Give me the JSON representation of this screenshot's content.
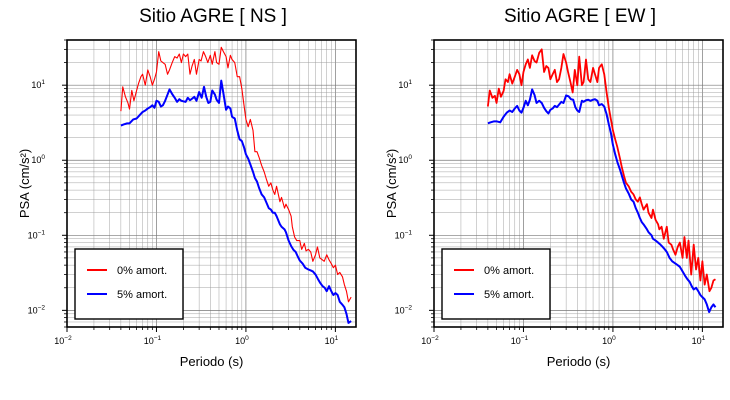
{
  "chart_data": [
    {
      "type": "line",
      "title": "Sitio AGRE [ NS ]",
      "xlabel": "Periodo (s)",
      "ylabel": "PSA (cm/s²)",
      "xscale": "log",
      "yscale": "log",
      "xlim": [
        0.01,
        17
      ],
      "ylim": [
        0.006,
        40
      ],
      "x_ticks": [
        "10⁻²",
        "10⁻¹",
        "10⁰",
        "10¹"
      ],
      "y_ticks": [
        "10⁻²",
        "10⁻¹",
        "10⁰",
        "10¹"
      ],
      "grid": true,
      "legend_position": "bottom-left",
      "series": [
        {
          "name": "0% amort.",
          "color": "#ff0000",
          "x": [
            0.04,
            0.042,
            0.045,
            0.048,
            0.05,
            0.053,
            0.056,
            0.06,
            0.063,
            0.067,
            0.07,
            0.075,
            0.08,
            0.085,
            0.09,
            0.095,
            0.1,
            0.106,
            0.112,
            0.118,
            0.125,
            0.133,
            0.14,
            0.15,
            0.16,
            0.17,
            0.18,
            0.19,
            0.2,
            0.212,
            0.224,
            0.237,
            0.25,
            0.265,
            0.28,
            0.3,
            0.315,
            0.335,
            0.355,
            0.375,
            0.4,
            0.42,
            0.45,
            0.47,
            0.5,
            0.53,
            0.56,
            0.6,
            0.63,
            0.67,
            0.7,
            0.75,
            0.8,
            0.85,
            0.9,
            0.95,
            1.0,
            1.06,
            1.12,
            1.2,
            1.26,
            1.33,
            1.4,
            1.5,
            1.6,
            1.7,
            1.8,
            1.9,
            2.0,
            2.1,
            2.2,
            2.4,
            2.5,
            2.7,
            2.8,
            3.0,
            3.2,
            3.3,
            3.5,
            3.7,
            4.0,
            4.2,
            4.5,
            4.7,
            5.0,
            5.3,
            5.6,
            6.0,
            6.3,
            6.7,
            7.0,
            7.5,
            8.0,
            8.5,
            9.0,
            9.5,
            10.0,
            10.6,
            11.2,
            12.0,
            12.6,
            13.3,
            14.0,
            15.0
          ],
          "y": [
            4.5,
            9.5,
            7,
            5.8,
            4.8,
            8.5,
            6.2,
            8.5,
            10.5,
            13,
            14,
            10,
            16,
            13,
            10,
            12,
            15,
            28,
            21,
            20,
            19,
            14,
            16,
            20,
            24,
            23,
            26,
            20,
            26,
            24,
            26,
            14,
            18,
            22,
            14,
            22,
            21,
            28,
            24,
            20,
            25,
            19,
            28,
            20,
            19,
            32,
            28,
            24,
            17,
            25,
            22,
            20,
            13,
            13,
            9,
            5.5,
            3.5,
            2.8,
            3.5,
            2.5,
            1.3,
            1.3,
            1.1,
            0.85,
            0.7,
            0.55,
            0.45,
            0.5,
            0.4,
            0.35,
            0.45,
            0.28,
            0.32,
            0.23,
            0.26,
            0.22,
            0.18,
            0.13,
            0.095,
            0.085,
            0.085,
            0.065,
            0.078,
            0.062,
            0.065,
            0.06,
            0.045,
            0.055,
            0.07,
            0.05,
            0.048,
            0.045,
            0.055,
            0.047,
            0.042,
            0.037,
            0.04,
            0.03,
            0.032,
            0.028,
            0.022,
            0.018,
            0.013,
            0.015
          ]
        },
        {
          "name": "5% amort.",
          "color": "#0000ff",
          "x": [
            0.04,
            0.043,
            0.047,
            0.05,
            0.055,
            0.06,
            0.065,
            0.07,
            0.075,
            0.08,
            0.085,
            0.09,
            0.095,
            0.1,
            0.106,
            0.112,
            0.118,
            0.125,
            0.133,
            0.14,
            0.15,
            0.16,
            0.17,
            0.18,
            0.19,
            0.2,
            0.212,
            0.224,
            0.237,
            0.25,
            0.265,
            0.28,
            0.3,
            0.32,
            0.34,
            0.36,
            0.38,
            0.4,
            0.42,
            0.45,
            0.47,
            0.5,
            0.53,
            0.56,
            0.6,
            0.63,
            0.67,
            0.7,
            0.75,
            0.8,
            0.85,
            0.9,
            0.95,
            1.0,
            1.06,
            1.12,
            1.2,
            1.26,
            1.33,
            1.4,
            1.5,
            1.6,
            1.7,
            1.8,
            1.9,
            2.0,
            2.1,
            2.2,
            2.4,
            2.5,
            2.7,
            2.8,
            3.0,
            3.2,
            3.4,
            3.6,
            3.8,
            4.0,
            4.3,
            4.6,
            5.0,
            5.3,
            5.6,
            6.0,
            6.4,
            6.8,
            7.2,
            7.6,
            8.0,
            8.5,
            9.0,
            9.5,
            10.0,
            10.6,
            11.2,
            11.9,
            12.6,
            13.3,
            14.0,
            15.0
          ],
          "y": [
            2.9,
            3.0,
            3.1,
            3.1,
            3.5,
            3.6,
            4.0,
            4.4,
            4.6,
            4.9,
            5.1,
            5.4,
            5.0,
            6.2,
            6.0,
            5.2,
            5.4,
            6.2,
            7.5,
            8.8,
            7.6,
            6.8,
            6.0,
            6.5,
            6.2,
            6.1,
            6.0,
            6.8,
            6.3,
            6.6,
            7.0,
            6.2,
            8.1,
            6.8,
            9.5,
            7.0,
            5.8,
            6.0,
            8.5,
            7.5,
            6.4,
            5.8,
            11.5,
            7.8,
            4.7,
            5.2,
            4.9,
            3.8,
            3.6,
            2.5,
            1.9,
            1.8,
            1.5,
            1.2,
            1.05,
            0.88,
            0.7,
            0.58,
            0.52,
            0.43,
            0.35,
            0.32,
            0.27,
            0.23,
            0.22,
            0.2,
            0.2,
            0.18,
            0.14,
            0.13,
            0.12,
            0.11,
            0.085,
            0.072,
            0.064,
            0.06,
            0.052,
            0.046,
            0.042,
            0.037,
            0.035,
            0.034,
            0.033,
            0.03,
            0.026,
            0.023,
            0.021,
            0.02,
            0.018,
            0.021,
            0.018,
            0.016,
            0.017,
            0.016,
            0.013,
            0.012,
            0.011,
            0.009,
            0.0068,
            0.0072
          ]
        }
      ]
    },
    {
      "type": "line",
      "title": "Sitio AGRE [ EW ]",
      "xlabel": "Periodo (s)",
      "ylabel": "PSA (cm/s²)",
      "xscale": "log",
      "yscale": "log",
      "xlim": [
        0.01,
        17
      ],
      "ylim": [
        0.006,
        40
      ],
      "x_ticks": [
        "10⁻²",
        "10⁻¹",
        "10⁰",
        "10¹"
      ],
      "y_ticks": [
        "10⁻²",
        "10⁻¹",
        "10⁰",
        "10¹"
      ],
      "grid": true,
      "legend_position": "bottom-left",
      "series": [
        {
          "name": "0% amort.",
          "color": "#ff0000",
          "x": [
            0.04,
            0.042,
            0.045,
            0.048,
            0.05,
            0.053,
            0.056,
            0.06,
            0.063,
            0.067,
            0.07,
            0.075,
            0.08,
            0.085,
            0.09,
            0.095,
            0.1,
            0.106,
            0.112,
            0.118,
            0.125,
            0.133,
            0.14,
            0.15,
            0.16,
            0.17,
            0.18,
            0.19,
            0.2,
            0.212,
            0.224,
            0.237,
            0.25,
            0.265,
            0.28,
            0.3,
            0.315,
            0.335,
            0.355,
            0.375,
            0.4,
            0.42,
            0.45,
            0.47,
            0.5,
            0.53,
            0.56,
            0.6,
            0.63,
            0.67,
            0.7,
            0.75,
            0.8,
            0.85,
            0.9,
            0.95,
            1.0,
            1.06,
            1.12,
            1.2,
            1.26,
            1.33,
            1.4,
            1.5,
            1.6,
            1.7,
            1.8,
            1.9,
            2.0,
            2.1,
            2.2,
            2.4,
            2.5,
            2.7,
            2.8,
            3.0,
            3.2,
            3.3,
            3.5,
            3.7,
            4.0,
            4.2,
            4.5,
            4.7,
            5.0,
            5.3,
            5.6,
            6.0,
            6.3,
            6.7,
            7.0,
            7.5,
            8.0,
            8.5,
            9.0,
            9.5,
            10.0,
            10.6,
            11.2,
            12.0,
            12.6,
            13.3,
            14.0
          ],
          "y": [
            5.2,
            8.5,
            6.8,
            7.2,
            5.8,
            9.0,
            7.0,
            8.4,
            12.0,
            11.0,
            14.0,
            10.5,
            13.0,
            16.0,
            14.0,
            10.0,
            15.0,
            19.0,
            22.0,
            17.0,
            25.0,
            21.0,
            20.0,
            27.0,
            30.0,
            15.0,
            18.0,
            17.0,
            12.0,
            14.0,
            16.0,
            11.0,
            12.0,
            17.0,
            26.0,
            20.0,
            15.0,
            11.0,
            8.0,
            16.0,
            10.0,
            24.0,
            10.0,
            11.0,
            22.0,
            12.0,
            11.0,
            17.0,
            14.0,
            11.0,
            17.0,
            19.0,
            14.0,
            8.0,
            5.0,
            3.5,
            2.5,
            1.9,
            1.5,
            1.05,
            0.8,
            0.62,
            0.5,
            0.45,
            0.38,
            0.35,
            0.3,
            0.28,
            0.32,
            0.26,
            0.22,
            0.26,
            0.2,
            0.17,
            0.22,
            0.16,
            0.14,
            0.12,
            0.13,
            0.09,
            0.13,
            0.08,
            0.075,
            0.065,
            0.055,
            0.07,
            0.08,
            0.05,
            0.095,
            0.05,
            0.085,
            0.03,
            0.075,
            0.035,
            0.05,
            0.025,
            0.045,
            0.022,
            0.03,
            0.018,
            0.02,
            0.025,
            0.026
          ]
        },
        {
          "name": "5% amort.",
          "color": "#0000ff",
          "x": [
            0.04,
            0.043,
            0.047,
            0.05,
            0.055,
            0.06,
            0.065,
            0.07,
            0.075,
            0.08,
            0.085,
            0.09,
            0.095,
            0.1,
            0.106,
            0.112,
            0.118,
            0.125,
            0.133,
            0.14,
            0.15,
            0.16,
            0.17,
            0.18,
            0.19,
            0.2,
            0.212,
            0.224,
            0.237,
            0.25,
            0.265,
            0.28,
            0.3,
            0.32,
            0.34,
            0.36,
            0.38,
            0.4,
            0.42,
            0.45,
            0.47,
            0.5,
            0.53,
            0.56,
            0.6,
            0.63,
            0.67,
            0.7,
            0.75,
            0.8,
            0.85,
            0.9,
            0.95,
            1.0,
            1.06,
            1.12,
            1.2,
            1.26,
            1.33,
            1.4,
            1.5,
            1.6,
            1.7,
            1.8,
            1.9,
            2.0,
            2.1,
            2.2,
            2.4,
            2.5,
            2.7,
            2.8,
            3.0,
            3.2,
            3.4,
            3.6,
            3.8,
            4.0,
            4.3,
            4.6,
            5.0,
            5.3,
            5.6,
            6.0,
            6.4,
            6.8,
            7.2,
            7.6,
            8.0,
            8.5,
            9.0,
            9.5,
            10.0,
            10.6,
            11.2,
            11.9,
            12.6,
            13.3,
            14.0
          ],
          "y": [
            3.1,
            3.2,
            3.3,
            3.3,
            3.2,
            3.8,
            4.3,
            4.6,
            4.4,
            4.9,
            5.3,
            4.6,
            4.3,
            5.0,
            6.2,
            5.4,
            6.4,
            8.8,
            7.4,
            5.8,
            6.2,
            5.8,
            5.0,
            4.5,
            4.2,
            4.7,
            4.9,
            5.3,
            5.1,
            5.5,
            6.0,
            5.8,
            7.3,
            7.1,
            6.5,
            6.4,
            5.1,
            4.6,
            4.4,
            6.2,
            6.0,
            6.3,
            6.4,
            6.2,
            6.4,
            6.5,
            6.2,
            5.4,
            5.6,
            5.2,
            4.1,
            3.0,
            2.3,
            1.6,
            1.2,
            0.95,
            0.75,
            0.62,
            0.5,
            0.42,
            0.36,
            0.3,
            0.28,
            0.23,
            0.2,
            0.17,
            0.15,
            0.14,
            0.12,
            0.11,
            0.1,
            0.09,
            0.085,
            0.08,
            0.075,
            0.07,
            0.065,
            0.06,
            0.05,
            0.045,
            0.042,
            0.04,
            0.038,
            0.033,
            0.029,
            0.026,
            0.024,
            0.021,
            0.019,
            0.02,
            0.018,
            0.016,
            0.015,
            0.014,
            0.012,
            0.0095,
            0.011,
            0.012,
            0.011
          ]
        }
      ]
    }
  ]
}
